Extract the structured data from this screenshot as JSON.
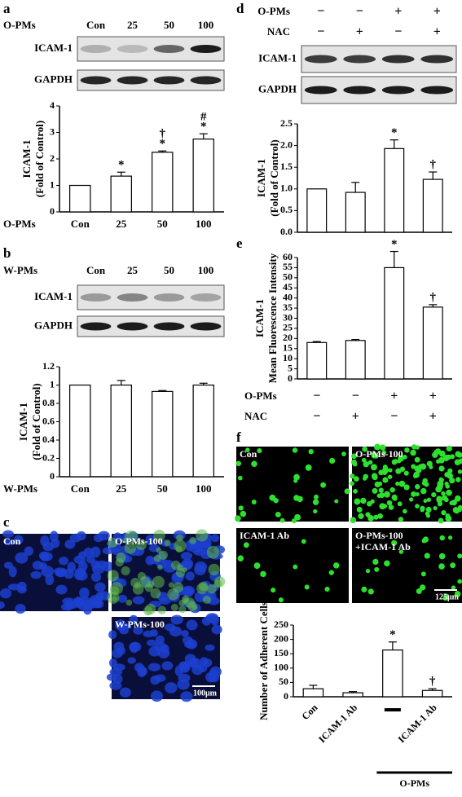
{
  "chart_data": [
    {
      "type": "bar",
      "panel": "a",
      "blot": {
        "treatment": "O-PMs",
        "lanes": [
          "Con",
          "25",
          "50",
          "100"
        ],
        "rows": [
          "ICAM-1",
          "GAPDH"
        ]
      },
      "ylabel": [
        "ICAM-1",
        "(Fold of Control)"
      ],
      "xlabel": "O-PMs",
      "categories": [
        "Con",
        "25",
        "50",
        "100"
      ],
      "values": [
        1,
        1.35,
        2.25,
        2.75
      ],
      "errors": [
        null,
        0.15,
        0.05,
        0.2
      ],
      "marks": [
        [],
        [
          "*"
        ],
        [
          "†",
          "*"
        ],
        [
          "#",
          "*"
        ]
      ],
      "ylim": [
        0,
        4
      ],
      "yticks": [
        0,
        1,
        2,
        3,
        4
      ],
      "color": "#ffffff"
    },
    {
      "type": "bar",
      "panel": "b",
      "blot": {
        "treatment": "W-PMs",
        "lanes": [
          "Con",
          "25",
          "50",
          "100"
        ],
        "rows": [
          "ICAM-1",
          "GAPDH"
        ]
      },
      "ylabel": [
        "ICAM-1",
        "(Fold of Control)"
      ],
      "xlabel": "W-PMs",
      "categories": [
        "Con",
        "25",
        "50",
        "100"
      ],
      "values": [
        1,
        1,
        0.93,
        1
      ],
      "errors": [
        null,
        0.05,
        0.01,
        0.02
      ],
      "ylim": [
        0,
        1.2
      ],
      "yticks": [
        0,
        0.2,
        0.4,
        0.6,
        0.8,
        1,
        1.2
      ],
      "color": "#ffffff"
    },
    {
      "type": "bar",
      "panel": "d",
      "conditions": [
        {
          "name": "O-PMs",
          "signs": [
            "−",
            "−",
            "+",
            "+"
          ]
        },
        {
          "name": "NAC",
          "signs": [
            "−",
            "+",
            "−",
            "+"
          ]
        }
      ],
      "blot": {
        "rows": [
          "ICAM-1",
          "GAPDH"
        ]
      },
      "ylabel": [
        "ICAM-1",
        "(Fold of Control)"
      ],
      "values": [
        1,
        0.92,
        1.93,
        1.22
      ],
      "errors": [
        null,
        0.23,
        0.2,
        0.17
      ],
      "marks": [
        [],
        [],
        [
          "*"
        ],
        [
          "†"
        ]
      ],
      "ylim": [
        0,
        2.5
      ],
      "yticks": [
        {
          "value": 0,
          "label": "0.0"
        },
        {
          "value": 0.5,
          "label": "0.5"
        },
        {
          "value": 1,
          "label": "1.0"
        },
        {
          "value": 1.5,
          "label": "1.5"
        },
        {
          "value": 2,
          "label": "2.0"
        },
        {
          "value": 2.5,
          "label": "2.5"
        }
      ],
      "color": "#ffffff"
    },
    {
      "type": "bar",
      "panel": "e",
      "conditions": [
        {
          "name": "O-PMs",
          "signs": [
            "−",
            "−",
            "+",
            "+"
          ]
        },
        {
          "name": "NAC",
          "signs": [
            "−",
            "+",
            "−",
            "+"
          ]
        }
      ],
      "ylabel": [
        "ICAM-1",
        "Mean Fluorescence Intensity"
      ],
      "values": [
        18,
        19,
        55,
        35.5
      ],
      "errors": [
        0.5,
        0.5,
        8,
        1.2
      ],
      "marks": [
        [],
        [],
        [
          "*"
        ],
        [
          "†"
        ]
      ],
      "ylim": [
        0,
        60
      ],
      "yticks": [
        0,
        5,
        10,
        15,
        20,
        25,
        30,
        35,
        40,
        45,
        50,
        55,
        60
      ],
      "color": "#ffffff"
    },
    {
      "type": "bar",
      "panel": "f",
      "images": [
        [
          "Con"
        ],
        [
          "O-PMs-100"
        ],
        [
          "ICAM-1 Ab"
        ],
        [
          "O-PMs-100",
          "+ICAM-1 Ab"
        ]
      ],
      "scale": "125μm",
      "ylabel": [
        "Number of Adherent Cells"
      ],
      "categories": [
        "Con",
        "ICAM-1 Ab",
        null,
        "ICAM-1 Ab"
      ],
      "group": "O-PMs",
      "values": [
        28,
        14,
        163,
        22
      ],
      "errors": [
        12,
        4,
        28,
        6
      ],
      "marks": [
        [],
        [],
        [
          "*"
        ],
        [
          "†"
        ]
      ],
      "ylim": [
        0,
        250
      ],
      "yticks": [
        0,
        50,
        100,
        150,
        200,
        250
      ],
      "color": "#ffffff"
    }
  ],
  "panel_c": {
    "panel": "c",
    "images": [
      [
        "Con"
      ],
      [
        "O-PMs-100"
      ],
      [
        "W-PMs-100"
      ]
    ],
    "scale": "100μm"
  }
}
